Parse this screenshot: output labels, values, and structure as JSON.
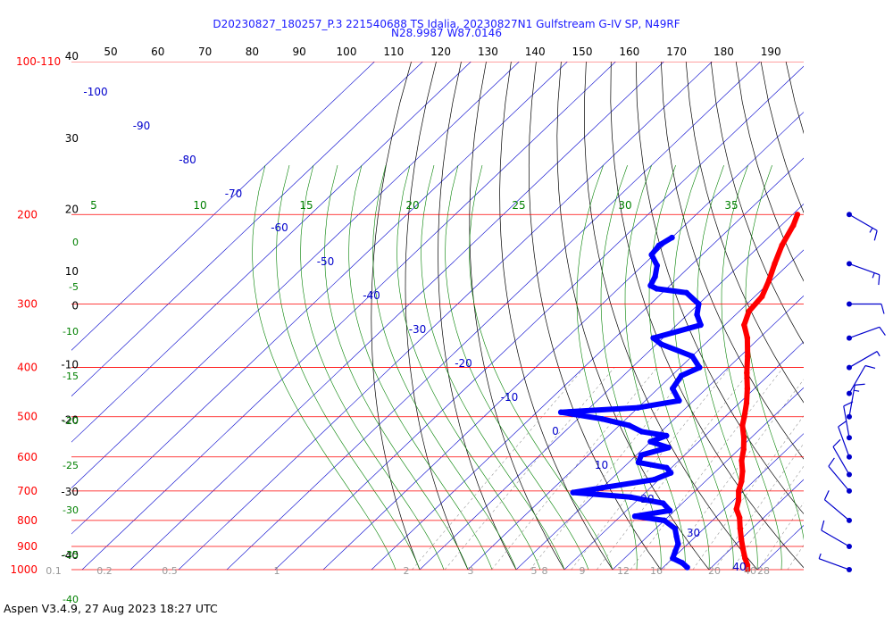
{
  "title_line1": "D20230827_180257_P.3 221540688 TS Idalia, 20230827N1 Gulfstream G-IV SP, N49RF",
  "title_line2": "N28.9987 W87.0146",
  "footer": "Aspen V3.4.9, 27 Aug 2023  18:27 UTC",
  "chart_data": {
    "type": "line",
    "chart_kind": "Skew-T log-P diagram",
    "pressure_axis": {
      "unit": "hPa",
      "scale": "log",
      "range": [
        100,
        1000
      ],
      "labels": [
        {
          "p": 100,
          "text": "100-110"
        },
        {
          "p": 200,
          "text": "200"
        },
        {
          "p": 300,
          "text": "300"
        },
        {
          "p": 400,
          "text": "400"
        },
        {
          "p": 500,
          "text": "500"
        },
        {
          "p": 600,
          "text": "600"
        },
        {
          "p": 700,
          "text": "700"
        },
        {
          "p": 800,
          "text": "800"
        },
        {
          "p": 900,
          "text": "900"
        },
        {
          "p": 1000,
          "text": "1000"
        }
      ]
    },
    "height_labels": [
      {
        "p": 100,
        "text": "40"
      },
      {
        "p": 145,
        "text": "30"
      },
      {
        "p": 200,
        "text": "20"
      },
      {
        "p": 265,
        "text": "10"
      },
      {
        "p": 310,
        "text": "0"
      },
      {
        "p": 405,
        "text": "-10"
      },
      {
        "p": 520,
        "text": "-20"
      },
      {
        "p": 720,
        "text": "-30"
      },
      {
        "p": 960,
        "text": "-40"
      }
    ],
    "top_temperature_labels": [
      50,
      60,
      70,
      80,
      90,
      100,
      110,
      120,
      130,
      140,
      150,
      160,
      170,
      180,
      190
    ],
    "isotherm_labels": [
      -100,
      -90,
      -80,
      -70,
      -60,
      -50,
      -40,
      -30,
      -20,
      -10,
      0,
      10,
      20,
      30,
      40
    ],
    "theta_e_labels": [
      5,
      10,
      15,
      20,
      25,
      30,
      35
    ],
    "left_green_labels": [
      0,
      -5,
      -10,
      -15,
      -20,
      -25,
      -30,
      -35,
      -40
    ],
    "mixing_ratio_labels": [
      "0.1",
      "0.2",
      "0.5",
      "1",
      "2",
      "3",
      "5",
      "8",
      "9",
      "12",
      "16",
      "20",
      "28",
      "40"
    ],
    "series": [
      {
        "name": "Temperature",
        "color": "#ff0000",
        "points": [
          {
            "p": 200,
            "t": -39
          },
          {
            "p": 210,
            "t": -37.5
          },
          {
            "p": 230,
            "t": -35.5
          },
          {
            "p": 250,
            "t": -33
          },
          {
            "p": 270,
            "t": -30.5
          },
          {
            "p": 290,
            "t": -28.5
          },
          {
            "p": 310,
            "t": -28
          },
          {
            "p": 330,
            "t": -26
          },
          {
            "p": 350,
            "t": -22.5
          },
          {
            "p": 380,
            "t": -18.5
          },
          {
            "p": 410,
            "t": -15
          },
          {
            "p": 440,
            "t": -11.5
          },
          {
            "p": 470,
            "t": -8.5
          },
          {
            "p": 500,
            "t": -6
          },
          {
            "p": 520,
            "t": -4.5
          },
          {
            "p": 550,
            "t": -1.5
          },
          {
            "p": 580,
            "t": 1
          },
          {
            "p": 610,
            "t": 3
          },
          {
            "p": 640,
            "t": 5.5
          },
          {
            "p": 670,
            "t": 7.5
          },
          {
            "p": 700,
            "t": 9
          },
          {
            "p": 730,
            "t": 11
          },
          {
            "p": 760,
            "t": 12.5
          },
          {
            "p": 790,
            "t": 15
          },
          {
            "p": 830,
            "t": 17.5
          },
          {
            "p": 870,
            "t": 20
          },
          {
            "p": 910,
            "t": 22.5
          },
          {
            "p": 950,
            "t": 25
          },
          {
            "p": 980,
            "t": 27
          },
          {
            "p": 1000,
            "t": 28
          }
        ]
      },
      {
        "name": "Dewpoint",
        "color": "#0000ff",
        "points": [
          {
            "p": 222,
            "t": -60
          },
          {
            "p": 230,
            "t": -61
          },
          {
            "p": 240,
            "t": -60.5
          },
          {
            "p": 252,
            "t": -57
          },
          {
            "p": 265,
            "t": -55
          },
          {
            "p": 276,
            "t": -54
          },
          {
            "p": 280,
            "t": -52
          },
          {
            "p": 285,
            "t": -45
          },
          {
            "p": 300,
            "t": -40
          },
          {
            "p": 315,
            "t": -38
          },
          {
            "p": 330,
            "t": -35
          },
          {
            "p": 350,
            "t": -42
          },
          {
            "p": 360,
            "t": -39
          },
          {
            "p": 380,
            "t": -30
          },
          {
            "p": 400,
            "t": -26
          },
          {
            "p": 415,
            "t": -28
          },
          {
            "p": 440,
            "t": -27
          },
          {
            "p": 465,
            "t": -23
          },
          {
            "p": 480,
            "t": -30
          },
          {
            "p": 490,
            "t": -45
          },
          {
            "p": 505,
            "t": -35
          },
          {
            "p": 520,
            "t": -28
          },
          {
            "p": 535,
            "t": -24
          },
          {
            "p": 545,
            "t": -18
          },
          {
            "p": 560,
            "t": -20
          },
          {
            "p": 575,
            "t": -15
          },
          {
            "p": 595,
            "t": -19
          },
          {
            "p": 615,
            "t": -18
          },
          {
            "p": 630,
            "t": -11
          },
          {
            "p": 645,
            "t": -9
          },
          {
            "p": 665,
            "t": -11
          },
          {
            "p": 690,
            "t": -20
          },
          {
            "p": 705,
            "t": -25
          },
          {
            "p": 720,
            "t": -12
          },
          {
            "p": 740,
            "t": -4
          },
          {
            "p": 765,
            "t": -1
          },
          {
            "p": 785,
            "t": -7
          },
          {
            "p": 800,
            "t": 0
          },
          {
            "p": 830,
            "t": 4
          },
          {
            "p": 860,
            "t": 6
          },
          {
            "p": 890,
            "t": 8
          },
          {
            "p": 920,
            "t": 9
          },
          {
            "p": 950,
            "t": 10
          },
          {
            "p": 970,
            "t": 13
          },
          {
            "p": 990,
            "t": 15
          }
        ]
      }
    ],
    "wind_barbs": [
      {
        "p": 200,
        "dir": 300,
        "kts": 15
      },
      {
        "p": 250,
        "dir": 290,
        "kts": 15
      },
      {
        "p": 300,
        "dir": 270,
        "kts": 10
      },
      {
        "p": 350,
        "dir": 250,
        "kts": 10
      },
      {
        "p": 400,
        "dir": 240,
        "kts": 5
      },
      {
        "p": 450,
        "dir": 210,
        "kts": 10
      },
      {
        "p": 500,
        "dir": 190,
        "kts": 15
      },
      {
        "p": 550,
        "dir": 170,
        "kts": 10
      },
      {
        "p": 600,
        "dir": 160,
        "kts": 10
      },
      {
        "p": 650,
        "dir": 150,
        "kts": 10
      },
      {
        "p": 700,
        "dir": 140,
        "kts": 10
      },
      {
        "p": 800,
        "dir": 130,
        "kts": 10
      },
      {
        "p": 900,
        "dir": 120,
        "kts": 10
      },
      {
        "p": 1000,
        "dir": 110,
        "kts": 5
      }
    ]
  }
}
